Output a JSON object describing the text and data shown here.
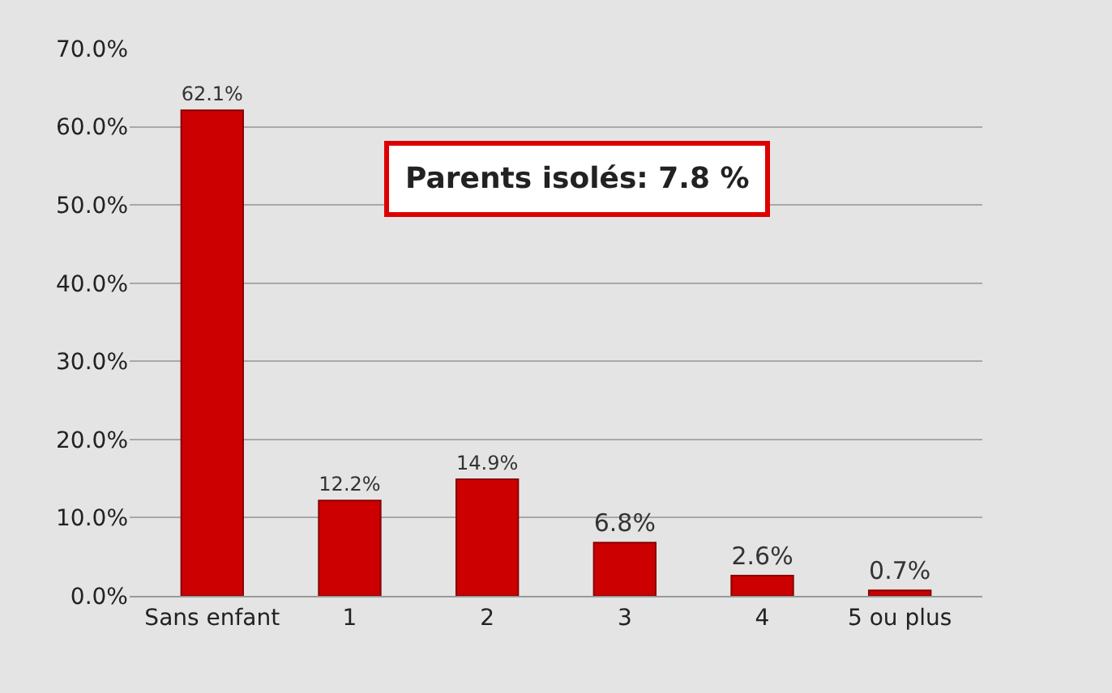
{
  "chart_data": {
    "type": "bar",
    "categories": [
      "Sans enfant",
      "1",
      "2",
      "3",
      "4",
      "5 ou plus"
    ],
    "values": [
      62.1,
      12.2,
      14.9,
      6.8,
      2.6,
      0.7
    ],
    "value_labels": [
      "62.1%",
      "12.2%",
      "14.9%",
      "6.8%",
      "2.6%",
      "0.7%"
    ],
    "color": "#cc0000",
    "ylim": [
      0,
      70
    ],
    "yticks": [
      {
        "value": 0,
        "label": "0.0%"
      },
      {
        "value": 10,
        "label": "10.0%"
      },
      {
        "value": 20,
        "label": "20.0%"
      },
      {
        "value": 30,
        "label": "30.0%"
      },
      {
        "value": 40,
        "label": "40.0%"
      },
      {
        "value": 50,
        "label": "50.0%"
      },
      {
        "value": 60,
        "label": "60.0%"
      },
      {
        "value": 70,
        "label": "70.0%"
      }
    ],
    "grid": "y",
    "legend": false,
    "annotations": [
      "Parents isolés: 7.8 %"
    ]
  }
}
